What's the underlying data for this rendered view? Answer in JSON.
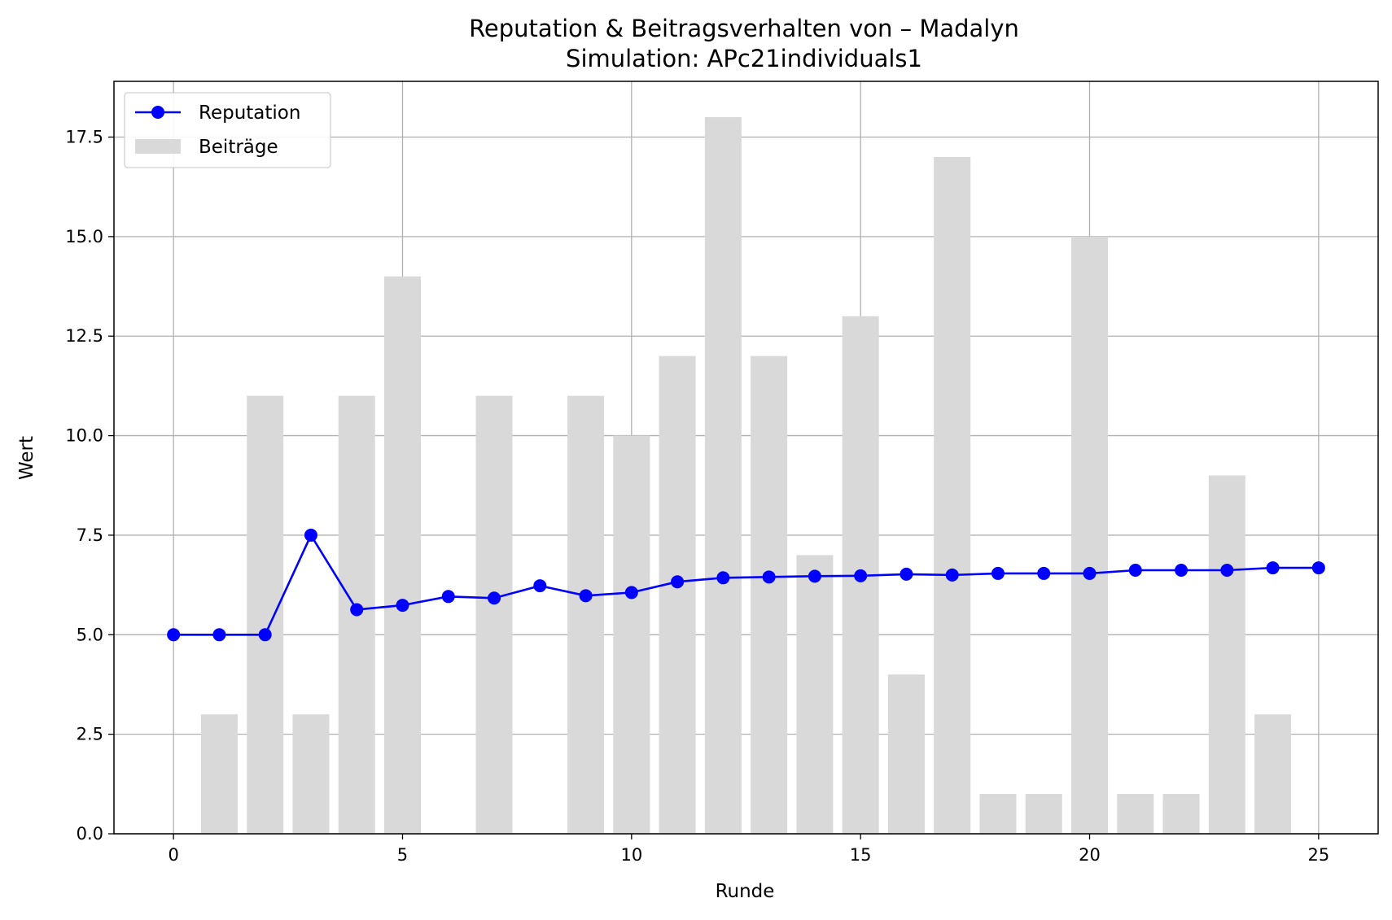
{
  "chart_data": {
    "type": "bar+line",
    "title": "Reputation & Beitragsverhalten von – Madalyn",
    "subtitle": "Simulation: APc21individuals1",
    "xlabel": "Runde",
    "ylabel": "Wert",
    "xlim": [
      -1.3,
      26.3
    ],
    "ylim": [
      0,
      18.9
    ],
    "xticks": [
      0,
      5,
      10,
      15,
      20,
      25
    ],
    "yticks": [
      0.0,
      2.5,
      5.0,
      7.5,
      10.0,
      12.5,
      15.0,
      17.5
    ],
    "grid": true,
    "legend": {
      "position": "top-left",
      "entries": [
        {
          "label": "Reputation",
          "kind": "line-marker",
          "color": "#0000ff"
        },
        {
          "label": "Beiträge",
          "kind": "bar",
          "color": "#d9d9d9"
        }
      ]
    },
    "bars": {
      "name": "Beiträge",
      "color": "#d9d9d9",
      "x": [
        1,
        2,
        3,
        4,
        5,
        7,
        9,
        10,
        11,
        12,
        13,
        14,
        15,
        16,
        17,
        18,
        19,
        20,
        21,
        22,
        23,
        24
      ],
      "values": [
        3,
        11,
        3,
        11,
        14,
        11,
        11,
        10,
        12,
        18,
        12,
        7,
        13,
        4,
        17,
        1,
        1,
        15,
        1,
        1,
        9,
        3
      ]
    },
    "line": {
      "name": "Reputation",
      "color": "#0000ff",
      "x": [
        0,
        1,
        2,
        3,
        4,
        5,
        6,
        7,
        8,
        9,
        10,
        11,
        12,
        13,
        14,
        15,
        16,
        17,
        18,
        19,
        20,
        21,
        22,
        23,
        24,
        25
      ],
      "values": [
        5.0,
        5.0,
        5.0,
        7.5,
        5.63,
        5.74,
        5.96,
        5.92,
        6.23,
        5.98,
        6.06,
        6.33,
        6.43,
        6.45,
        6.47,
        6.48,
        6.52,
        6.5,
        6.54,
        6.54,
        6.54,
        6.62,
        6.62,
        6.62,
        6.68,
        6.68
      ]
    }
  }
}
